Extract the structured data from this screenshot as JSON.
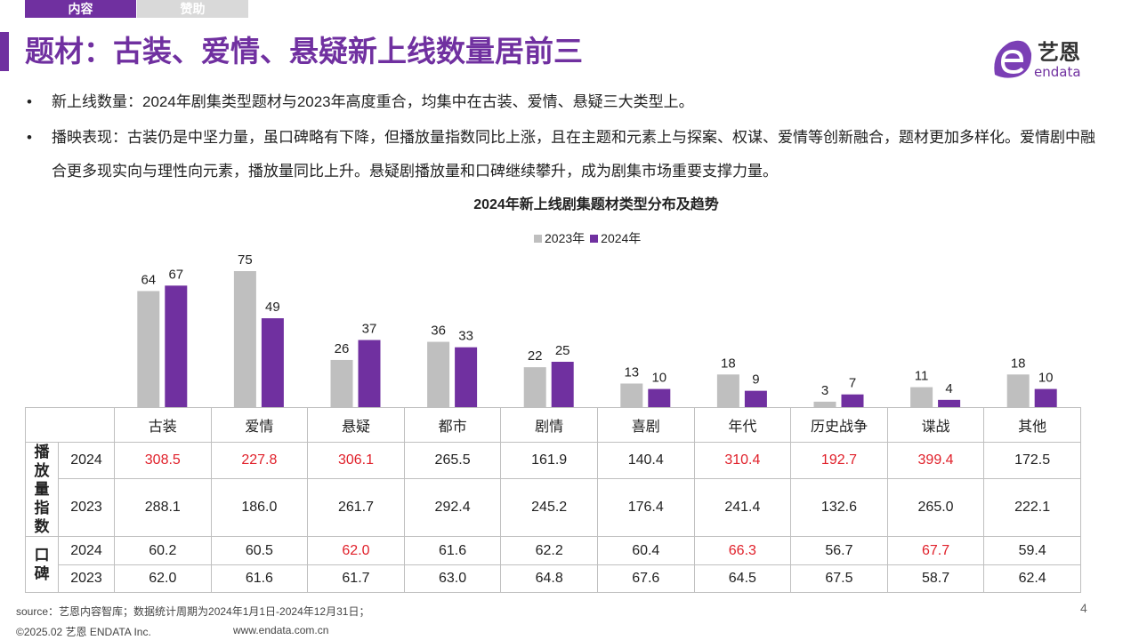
{
  "tabs": [
    {
      "label": "内容",
      "active": true
    },
    {
      "label": "赞助",
      "active": false
    }
  ],
  "title": "题材：古装、爱情、悬疑新上线数量居前三",
  "logo": {
    "cn": "艺恩",
    "en": "endata"
  },
  "bullets": [
    "新上线数量：2024年剧集类型题材与2023年高度重合，均集中在古装、爱情、悬疑三大类型上。",
    "播映表现：古装仍是中坚力量，虽口碑略有下降，但播放量指数同比上涨，且在主题和元素上与探案、权谋、爱情等创新融合，题材更加多样化。爱情剧中融合更多现实向与理性向元素，播放量同比上升。悬疑剧播放量和口碑继续攀升，成为剧集市场重要支撑力量。"
  ],
  "bullet_symbol": "•",
  "chart_data": {
    "type": "bar",
    "title": "2024年新上线剧集题材类型分布及趋势",
    "categories": [
      "古装",
      "爱情",
      "悬疑",
      "都市",
      "剧情",
      "喜剧",
      "年代",
      "历史战争",
      "谍战",
      "其他"
    ],
    "series": [
      {
        "name": "2023年",
        "color": "#bfbfbf",
        "values": [
          64,
          75,
          26,
          36,
          22,
          13,
          18,
          3,
          11,
          18
        ]
      },
      {
        "name": "2024年",
        "color": "#7030a0",
        "values": [
          67,
          49,
          37,
          33,
          25,
          10,
          9,
          7,
          4,
          10
        ]
      }
    ],
    "legend": "top-center",
    "grid": false
  },
  "table": {
    "groups": [
      "播放量指数",
      "口碑"
    ],
    "years": [
      "2024",
      "2023"
    ],
    "play_2024": [
      "308.5",
      "227.8",
      "306.1",
      "265.5",
      "161.9",
      "140.4",
      "310.4",
      "192.7",
      "399.4",
      "172.5"
    ],
    "play_2024_red": [
      true,
      true,
      true,
      false,
      false,
      false,
      true,
      true,
      true,
      false
    ],
    "play_2023": [
      "288.1",
      "186.0",
      "261.7",
      "292.4",
      "245.2",
      "176.4",
      "241.4",
      "132.6",
      "265.0",
      "222.1"
    ],
    "score_2024": [
      "60.2",
      "60.5",
      "62.0",
      "61.6",
      "62.2",
      "60.4",
      "66.3",
      "56.7",
      "67.7",
      "59.4"
    ],
    "score_2024_red": [
      false,
      false,
      true,
      false,
      false,
      false,
      true,
      false,
      true,
      false
    ],
    "score_2023": [
      "62.0",
      "61.6",
      "61.7",
      "63.0",
      "64.8",
      "67.6",
      "64.5",
      "67.5",
      "58.7",
      "62.4"
    ],
    "highlight_color": "#e0202a"
  },
  "footer": {
    "source": "source：艺恩内容智库；数据统计周期为2024年1月1日-2024年12月31日；",
    "copyright": "©2025.02 艺恩 ENDATA Inc.",
    "url": "www.endata.com.cn",
    "page": "4"
  }
}
